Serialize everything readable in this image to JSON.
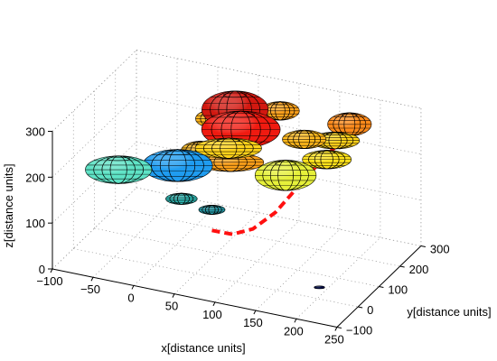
{
  "chart_data": {
    "type": "scatter",
    "subtype": "3d-ellipsoids",
    "xlabel": "x[distance units]",
    "ylabel": "y[distance units]",
    "zlabel": "z[distance units]",
    "x_ticks": [
      "−100",
      "−50",
      "0",
      "50",
      "100",
      "150",
      "200",
      "250"
    ],
    "y_ticks": [
      "−100",
      "0",
      "100",
      "200",
      "300"
    ],
    "z_ticks": [
      "0",
      "100",
      "200",
      "300"
    ],
    "xlim": [
      -100,
      250
    ],
    "ylim": [
      -100,
      300
    ],
    "zlim": [
      0,
      300
    ],
    "grid": true,
    "colormap": "jet",
    "ellipsoids": [
      {
        "x": -60,
        "y": 60,
        "z": 160,
        "rx": 38,
        "ry": 38,
        "rz": 30,
        "color": "#5fe3c6"
      },
      {
        "x": 10,
        "y": 70,
        "z": 190,
        "rx": 40,
        "ry": 40,
        "rz": 35,
        "color": "#1f9cf0"
      },
      {
        "x": 20,
        "y": 50,
        "z": 130,
        "rx": 18,
        "ry": 18,
        "rz": 12,
        "color": "#33c9c4"
      },
      {
        "x": 70,
        "y": 90,
        "z": 210,
        "rx": 38,
        "ry": 38,
        "rz": 20,
        "color": "#ffa21a"
      },
      {
        "x": 70,
        "y": 80,
        "z": 245,
        "rx": 38,
        "ry": 38,
        "rz": 22,
        "color": "#ffd21a"
      },
      {
        "x": 75,
        "y": 120,
        "z": 270,
        "rx": 45,
        "ry": 45,
        "rz": 40,
        "color": "#f01a10"
      },
      {
        "x": 60,
        "y": 150,
        "z": 295,
        "rx": 38,
        "ry": 38,
        "rz": 40,
        "color": "#d21810"
      },
      {
        "x": 30,
        "y": 100,
        "z": 215,
        "rx": 22,
        "ry": 22,
        "rz": 22,
        "color": "#f0b01a"
      },
      {
        "x": 60,
        "y": 40,
        "z": 125,
        "rx": 15,
        "ry": 15,
        "rz": 10,
        "color": "#2eb8c8"
      },
      {
        "x": 130,
        "y": 120,
        "z": 190,
        "rx": 35,
        "ry": 35,
        "rz": 33,
        "color": "#e6f03a"
      },
      {
        "x": 160,
        "y": 200,
        "z": 200,
        "rx": 28,
        "ry": 28,
        "rz": 20,
        "color": "#ffe21a"
      },
      {
        "x": 170,
        "y": 200,
        "z": 245,
        "rx": 28,
        "ry": 28,
        "rz": 18,
        "color": "#ffd21a"
      },
      {
        "x": 140,
        "y": 170,
        "z": 250,
        "rx": 25,
        "ry": 25,
        "rz": 20,
        "color": "#ffb81a"
      },
      {
        "x": 175,
        "y": 250,
        "z": 260,
        "rx": 25,
        "ry": 25,
        "rz": 25,
        "color": "#ff8a1a"
      },
      {
        "x": 100,
        "y": 210,
        "z": 280,
        "rx": 22,
        "ry": 22,
        "rz": 20,
        "color": "#ffa21a"
      },
      {
        "x": 30,
        "y": 170,
        "z": 255,
        "rx": 22,
        "ry": 22,
        "rz": 20,
        "color": "#ffb41a"
      },
      {
        "x": 200,
        "y": 10,
        "z": 20,
        "rx": 6,
        "ry": 6,
        "rz": 3,
        "color": "#000a40"
      }
    ],
    "trajectory": [
      [
        60,
        40,
        80
      ],
      [
        80,
        60,
        70
      ],
      [
        100,
        80,
        80
      ],
      [
        120,
        110,
        110
      ],
      [
        140,
        140,
        160
      ],
      [
        160,
        180,
        210
      ],
      [
        180,
        230,
        250
      ]
    ]
  }
}
